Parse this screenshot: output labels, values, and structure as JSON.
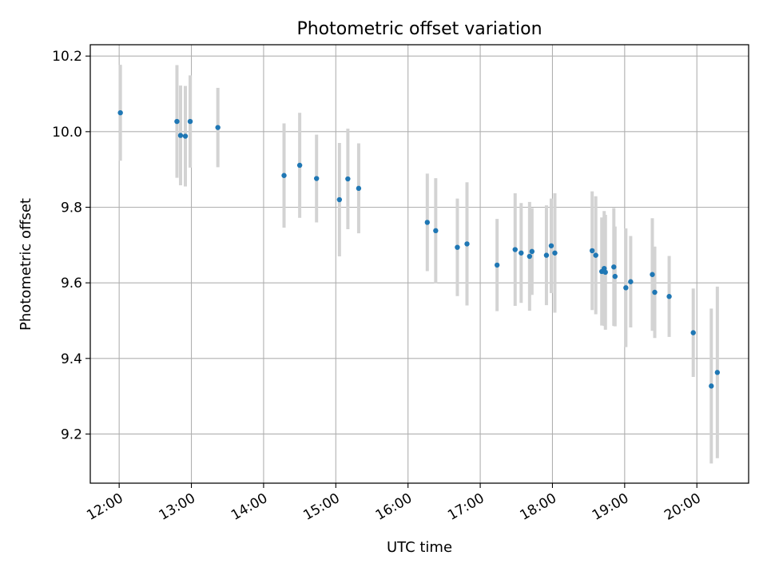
{
  "chart_data": {
    "type": "scatter",
    "title": "Photometric offset variation",
    "xlabel": "UTC time",
    "ylabel": "Photometric offset",
    "x_ticks": [
      "12:00",
      "13:00",
      "14:00",
      "15:00",
      "16:00",
      "17:00",
      "18:00",
      "19:00",
      "20:00"
    ],
    "y_ticks": [
      "9.2",
      "9.4",
      "9.6",
      "9.8",
      "10.0",
      "10.2"
    ],
    "xlim": [
      "11:36",
      "20:43"
    ],
    "ylim": [
      9.07,
      10.23
    ],
    "grid": true,
    "colors": {
      "point": "#1f77b4",
      "errorbar": "#d3d3d3",
      "grid": "#b0b0b0"
    },
    "series": [
      {
        "points": [
          {
            "x": "12:01",
            "y": 10.05,
            "err": 0.127
          },
          {
            "x": "12:48",
            "y": 10.027,
            "err": 0.149
          },
          {
            "x": "12:51",
            "y": 9.99,
            "err": 0.132
          },
          {
            "x": "12:55",
            "y": 9.988,
            "err": 0.133
          },
          {
            "x": "12:59",
            "y": 10.027,
            "err": 0.122
          },
          {
            "x": "13:22",
            "y": 10.011,
            "err": 0.105
          },
          {
            "x": "14:17",
            "y": 9.884,
            "err": 0.138
          },
          {
            "x": "14:30",
            "y": 9.911,
            "err": 0.139
          },
          {
            "x": "14:44",
            "y": 9.876,
            "err": 0.116
          },
          {
            "x": "15:03",
            "y": 9.82,
            "err": 0.15
          },
          {
            "x": "15:10",
            "y": 9.875,
            "err": 0.133
          },
          {
            "x": "15:19",
            "y": 9.85,
            "err": 0.119
          },
          {
            "x": "16:16",
            "y": 9.76,
            "err": 0.129
          },
          {
            "x": "16:23",
            "y": 9.738,
            "err": 0.139
          },
          {
            "x": "16:41",
            "y": 9.694,
            "err": 0.129
          },
          {
            "x": "16:49",
            "y": 9.703,
            "err": 0.163
          },
          {
            "x": "17:14",
            "y": 9.647,
            "err": 0.122
          },
          {
            "x": "17:29",
            "y": 9.688,
            "err": 0.149
          },
          {
            "x": "17:34",
            "y": 9.679,
            "err": 0.132
          },
          {
            "x": "17:41",
            "y": 9.67,
            "err": 0.144
          },
          {
            "x": "17:43",
            "y": 9.683,
            "err": 0.115
          },
          {
            "x": "17:55",
            "y": 9.673,
            "err": 0.132
          },
          {
            "x": "17:59",
            "y": 9.698,
            "err": 0.125
          },
          {
            "x": "18:02",
            "y": 9.679,
            "err": 0.158
          },
          {
            "x": "18:33",
            "y": 9.685,
            "err": 0.157
          },
          {
            "x": "18:36",
            "y": 9.673,
            "err": 0.156
          },
          {
            "x": "18:41",
            "y": 9.63,
            "err": 0.143
          },
          {
            "x": "18:43",
            "y": 9.638,
            "err": 0.152
          },
          {
            "x": "18:44",
            "y": 9.628,
            "err": 0.152
          },
          {
            "x": "18:51",
            "y": 9.642,
            "err": 0.156
          },
          {
            "x": "18:52",
            "y": 9.617,
            "err": 0.132
          },
          {
            "x": "19:01",
            "y": 9.587,
            "err": 0.157
          },
          {
            "x": "19:05",
            "y": 9.603,
            "err": 0.121
          },
          {
            "x": "19:23",
            "y": 9.622,
            "err": 0.149
          },
          {
            "x": "19:25",
            "y": 9.575,
            "err": 0.121
          },
          {
            "x": "19:37",
            "y": 9.564,
            "err": 0.107
          },
          {
            "x": "19:57",
            "y": 9.468,
            "err": 0.117
          },
          {
            "x": "20:12",
            "y": 9.327,
            "err": 0.205
          },
          {
            "x": "20:17",
            "y": 9.363,
            "err": 0.227
          }
        ]
      }
    ]
  }
}
